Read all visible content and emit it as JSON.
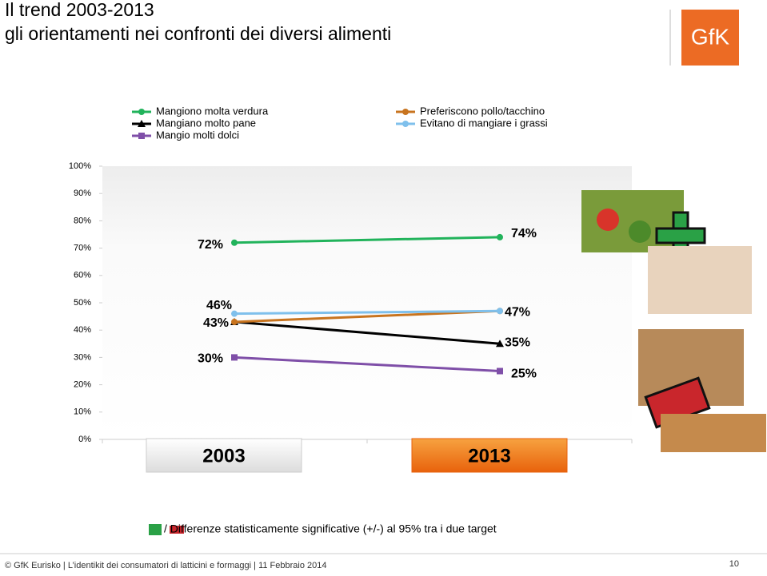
{
  "title": "Il trend 2003-2013",
  "subtitle": "gli orientamenti nei confronti dei diversi alimenti",
  "logo": "GfK",
  "chart_data": {
    "type": "line",
    "categories": [
      "2003",
      "2013"
    ],
    "series": [
      {
        "name": "Mangiono molta verdura",
        "color": "#21b35b",
        "marker": "circle",
        "values": [
          72,
          74
        ],
        "value_labels": [
          "72%",
          "74%"
        ]
      },
      {
        "name": "Mangiano molto pane",
        "color": "#000000",
        "marker": "triangle",
        "values": [
          43,
          35
        ],
        "value_labels": [
          "43%",
          "35%"
        ]
      },
      {
        "name": "Mangio molti dolci",
        "color": "#7f4fa8",
        "marker": "square",
        "values": [
          30,
          25
        ],
        "value_labels": [
          "30%",
          "25%"
        ]
      },
      {
        "name": "Preferiscono pollo/tacchino",
        "color": "#c8741f",
        "marker": "circle",
        "values": [
          43,
          47
        ]
      },
      {
        "name": "Evitano di mangiare i grassi",
        "color": "#7fc0ec",
        "marker": "circle",
        "values": [
          46,
          47
        ],
        "value_labels": [
          "46%",
          "47%"
        ]
      }
    ],
    "ylim": [
      0,
      100
    ],
    "yticks": [
      {
        "value": 0,
        "label": "0%"
      },
      {
        "value": 10,
        "label": "10%"
      },
      {
        "value": 20,
        "label": "20%"
      },
      {
        "value": 30,
        "label": "30%"
      },
      {
        "value": 40,
        "label": "40%"
      },
      {
        "value": 50,
        "label": "50%"
      },
      {
        "value": 60,
        "label": "60%"
      },
      {
        "value": 70,
        "label": "70%"
      },
      {
        "value": 80,
        "label": "80%"
      },
      {
        "value": 90,
        "label": "90%"
      },
      {
        "value": 100,
        "label": "100%"
      }
    ]
  },
  "note": "/ Differenze statisticamente significative (+/-) al 95% tra i due target",
  "footer": "© GfK Eurisko | L’identikit dei consumatori di latticini e formaggi | 11 Febbraio 2014",
  "page_number": "10"
}
